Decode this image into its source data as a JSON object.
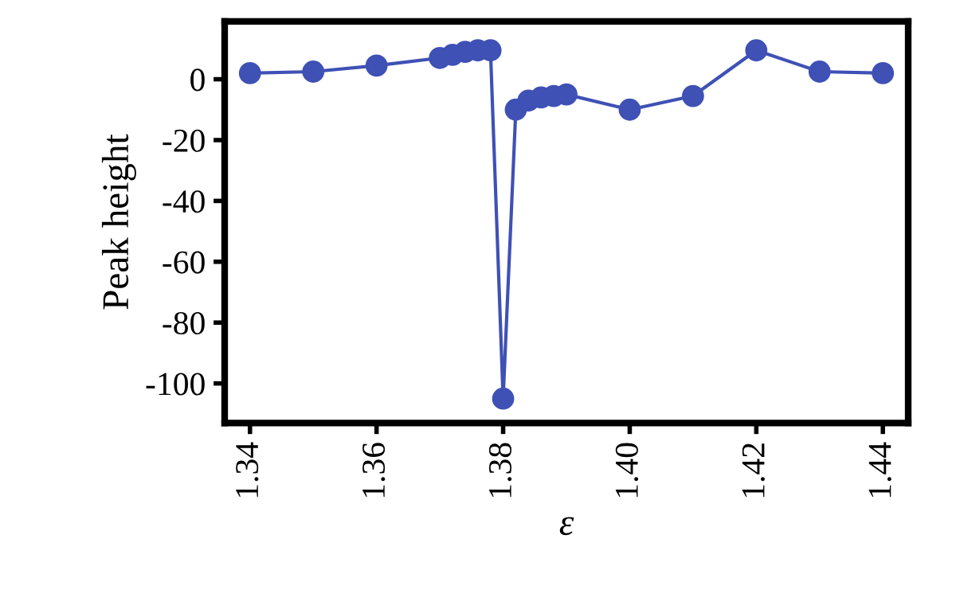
{
  "chart_data": {
    "type": "line",
    "xlabel": "ε",
    "ylabel": "Peak height",
    "x": [
      1.34,
      1.35,
      1.36,
      1.37,
      1.372,
      1.374,
      1.376,
      1.378,
      1.38,
      1.382,
      1.384,
      1.386,
      1.388,
      1.39,
      1.4,
      1.41,
      1.42,
      1.43,
      1.44
    ],
    "series": [
      {
        "color": "#3f51b5",
        "values": [
          2,
          2.5,
          4.5,
          7,
          8,
          9,
          9.5,
          9.5,
          -105,
          -10,
          -7,
          -6,
          -5.5,
          -5,
          -10,
          -5.5,
          9.5,
          2.5,
          2
        ]
      }
    ],
    "xlim": [
      1.336,
      1.444
    ],
    "ylim": [
      -113,
      19
    ],
    "xticks": [
      {
        "value": 1.34,
        "label": "1.34"
      },
      {
        "value": 1.36,
        "label": "1.36"
      },
      {
        "value": 1.38,
        "label": "1.38"
      },
      {
        "value": 1.4,
        "label": "1.40"
      },
      {
        "value": 1.42,
        "label": "1.42"
      },
      {
        "value": 1.44,
        "label": "1.44"
      }
    ],
    "yticks": [
      -100,
      -80,
      -60,
      -40,
      -20,
      0
    ],
    "marker": "circle",
    "line_style": "solid",
    "grid": false,
    "legend": false
  }
}
